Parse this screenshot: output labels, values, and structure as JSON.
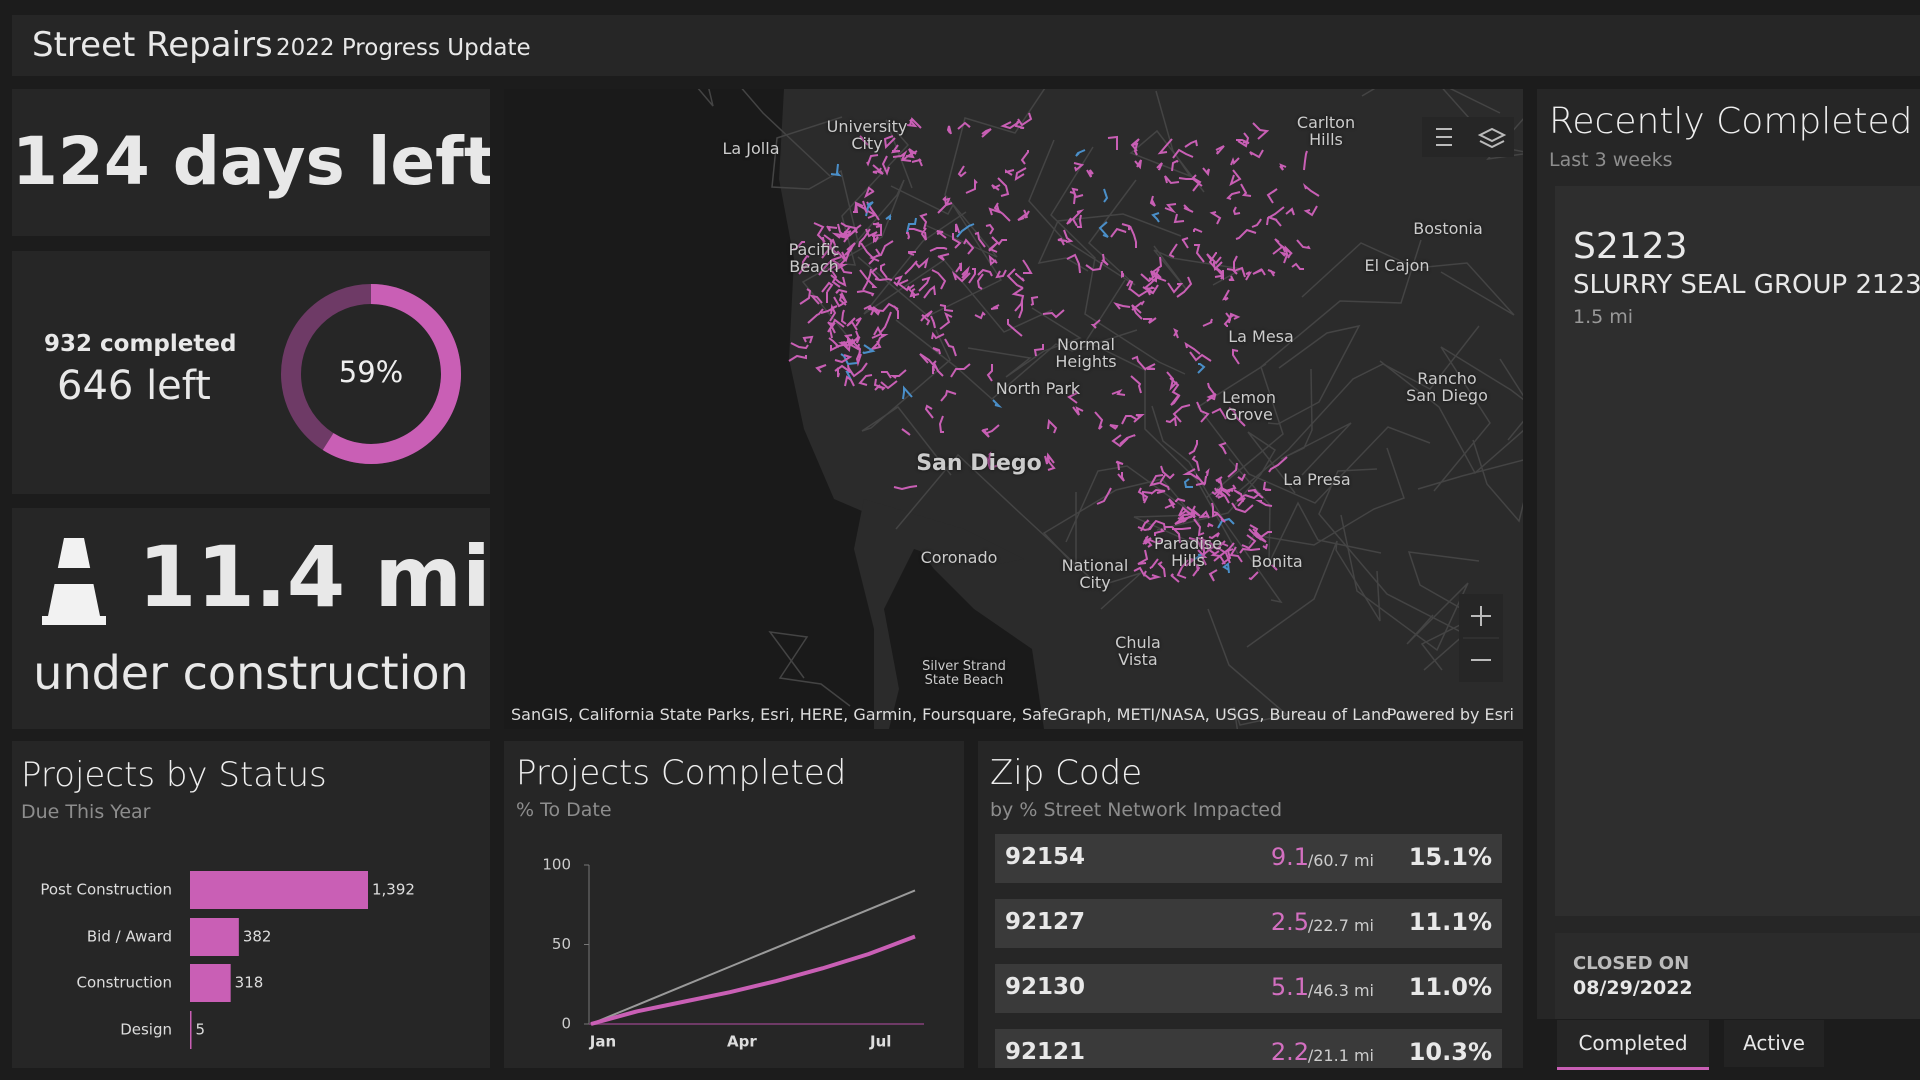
{
  "header": {
    "title": "Street Repairs",
    "subtitle": "2022 Progress Update"
  },
  "days_left": "124 days left",
  "progress": {
    "completed": "932 completed",
    "left": "646 left",
    "percent": 59,
    "percent_label": "59%"
  },
  "construction": {
    "value": "11.4 mi",
    "label": "under construction"
  },
  "map": {
    "labels": [
      "La Jolla",
      "Carlton Hills",
      "Pacific Beach",
      "Bostonia",
      "El Cajon",
      "Normal Heights",
      "La Mesa",
      "Rancho San Diego",
      "North Park",
      "Lemon Grove",
      "San Diego",
      "La Presa",
      "Coronado",
      "National City",
      "Paradise Hills",
      "Bonita",
      "Chula Vista",
      "Silver Strand State Beach",
      "University City"
    ],
    "attribution": "SanGIS, California State Parks, Esri, HERE, Garmin, Foursquare, SafeGraph, METI/NASA, USGS, Bureau of Land ...",
    "powered": "Powered by Esri"
  },
  "status_chart": {
    "type": "bar",
    "title": "Projects by Status",
    "subtitle": "Due This Year",
    "categories": [
      "Post Construction",
      "Bid / Award",
      "Construction",
      "Design"
    ],
    "values": [
      1392,
      382,
      318,
      5
    ],
    "value_labels": [
      "1,392",
      "382",
      "318",
      "5"
    ],
    "color": "#c95fb5"
  },
  "completed_chart": {
    "type": "line",
    "title": "Projects Completed",
    "subtitle": "% To Date",
    "categories": [
      "Jan",
      null,
      null,
      "Apr",
      null,
      null,
      "Jul",
      null
    ],
    "ylim": [
      0,
      100
    ],
    "yticks": [
      0,
      50,
      100
    ],
    "series": [
      {
        "color": "#9a9a9a",
        "values": [
          0,
          12,
          24,
          36,
          48,
          60,
          72,
          84
        ]
      },
      {
        "color": "#c95fb5",
        "values": [
          0,
          8,
          14,
          20,
          27,
          35,
          44,
          55
        ]
      }
    ]
  },
  "zip_table": {
    "title": "Zip Code",
    "subtitle": "by % Street Network Impacted",
    "rows": [
      {
        "zip": "92154",
        "miles": 9.1,
        "total": "/60.7 mi",
        "percent": "15.1%"
      },
      {
        "zip": "92127",
        "miles": 2.5,
        "total": "/22.7 mi",
        "percent": "11.1%"
      },
      {
        "zip": "92130",
        "miles": 5.1,
        "total": "/46.3 mi",
        "percent": "11.0%"
      },
      {
        "zip": "92121",
        "miles": 2.2,
        "total": "/21.1 mi",
        "percent": "10.3%"
      }
    ]
  },
  "recent": {
    "title": "Recently Completed P",
    "subtitle": "Last 3 weeks",
    "item": {
      "id": "S2123",
      "name": "SLURRY SEAL GROUP 2123",
      "length": "1.5 mi"
    },
    "closed_label": "CLOSED ON",
    "closed_date": "08/29/2022",
    "tabs": [
      "Completed",
      "Active"
    ]
  }
}
